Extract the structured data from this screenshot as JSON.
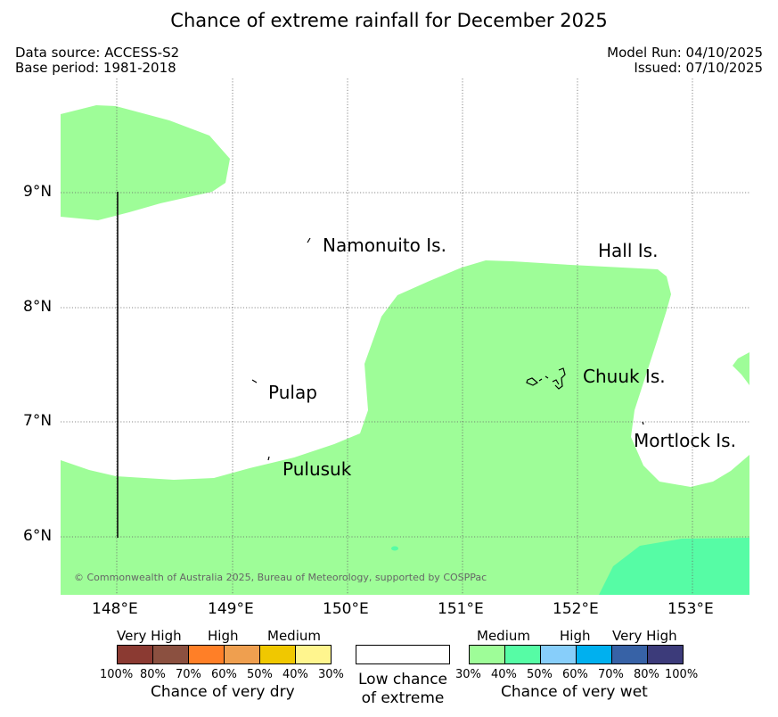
{
  "title": "Chance of extreme rainfall for December 2025",
  "meta": {
    "data_source": "Data source: ACCESS-S2",
    "base_period": "Base period: 1981-2018",
    "model_run": "Model Run: 04/10/2025",
    "issued": "Issued: 07/10/2025"
  },
  "map": {
    "lon_ticks": [
      "148°E",
      "149°E",
      "150°E",
      "151°E",
      "152°E",
      "153°E"
    ],
    "lat_ticks": [
      "9°N",
      "8°N",
      "7°N",
      "6°N"
    ],
    "places": {
      "namonuito": "Namonuito Is.",
      "hall": "Hall Is.",
      "pulap": "Pulap",
      "chuuk": "Chuuk Is.",
      "mortlock": "Mortlock Is.",
      "pulusuk": "Pulusuk"
    },
    "copyright": "© Commonwealth of Australia 2025, Bureau of Meteorology, supported by COSPPac",
    "colors": {
      "wet_medium": "#9efd98",
      "wet_medium_high": "#56fca5",
      "grid": "#666666"
    }
  },
  "legend": {
    "dry": {
      "levels": [
        "Very High",
        "High",
        "Medium"
      ],
      "pcts": [
        "100%",
        "80%",
        "70%",
        "60%",
        "50%",
        "40%",
        "30%"
      ],
      "colors": [
        "#8b3a32",
        "#8b5040",
        "#ff7f27",
        "#ef9f4f",
        "#f0c800",
        "#fff58e"
      ],
      "caption": "Chance of very dry"
    },
    "low": {
      "line1": "Low chance",
      "line2": "of extreme",
      "color": "#ffffff"
    },
    "wet": {
      "levels": [
        "Medium",
        "High",
        "Very High"
      ],
      "pcts": [
        "30%",
        "40%",
        "50%",
        "60%",
        "70%",
        "80%",
        "100%"
      ],
      "colors": [
        "#9efd98",
        "#56fca5",
        "#87cefa",
        "#00b0ef",
        "#3762a6",
        "#3c3b7a"
      ],
      "caption": "Chance of very wet"
    }
  }
}
